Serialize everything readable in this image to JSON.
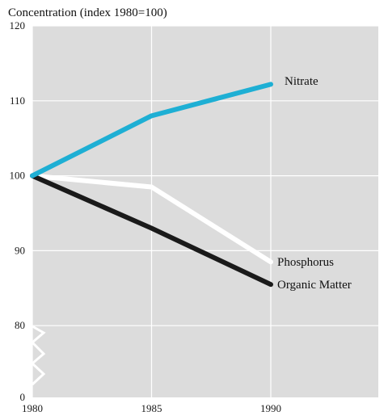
{
  "chart_data": {
    "type": "line",
    "title": "Concentration (index 1980=100)",
    "x": [
      1980,
      1985,
      1990
    ],
    "x_tick_labels": [
      "1980",
      "1985",
      "1990"
    ],
    "y_tick_labels": [
      "120",
      "110",
      "100",
      "90",
      "80",
      "0"
    ],
    "y_axis_break": "between 0 and 80",
    "grid": true,
    "legend": "labels at line ends",
    "series": [
      {
        "name": "Nitrate",
        "values": [
          100,
          108,
          112.2
        ],
        "color": "#1eafd4"
      },
      {
        "name": "Phosphorus",
        "values": [
          100,
          98.5,
          88.5
        ],
        "color": "#ffffff"
      },
      {
        "name": "Organic Matter",
        "values": [
          100,
          93,
          85.5
        ],
        "color": "#1a1a1a"
      }
    ],
    "plot_background": "#dcdcdc"
  }
}
